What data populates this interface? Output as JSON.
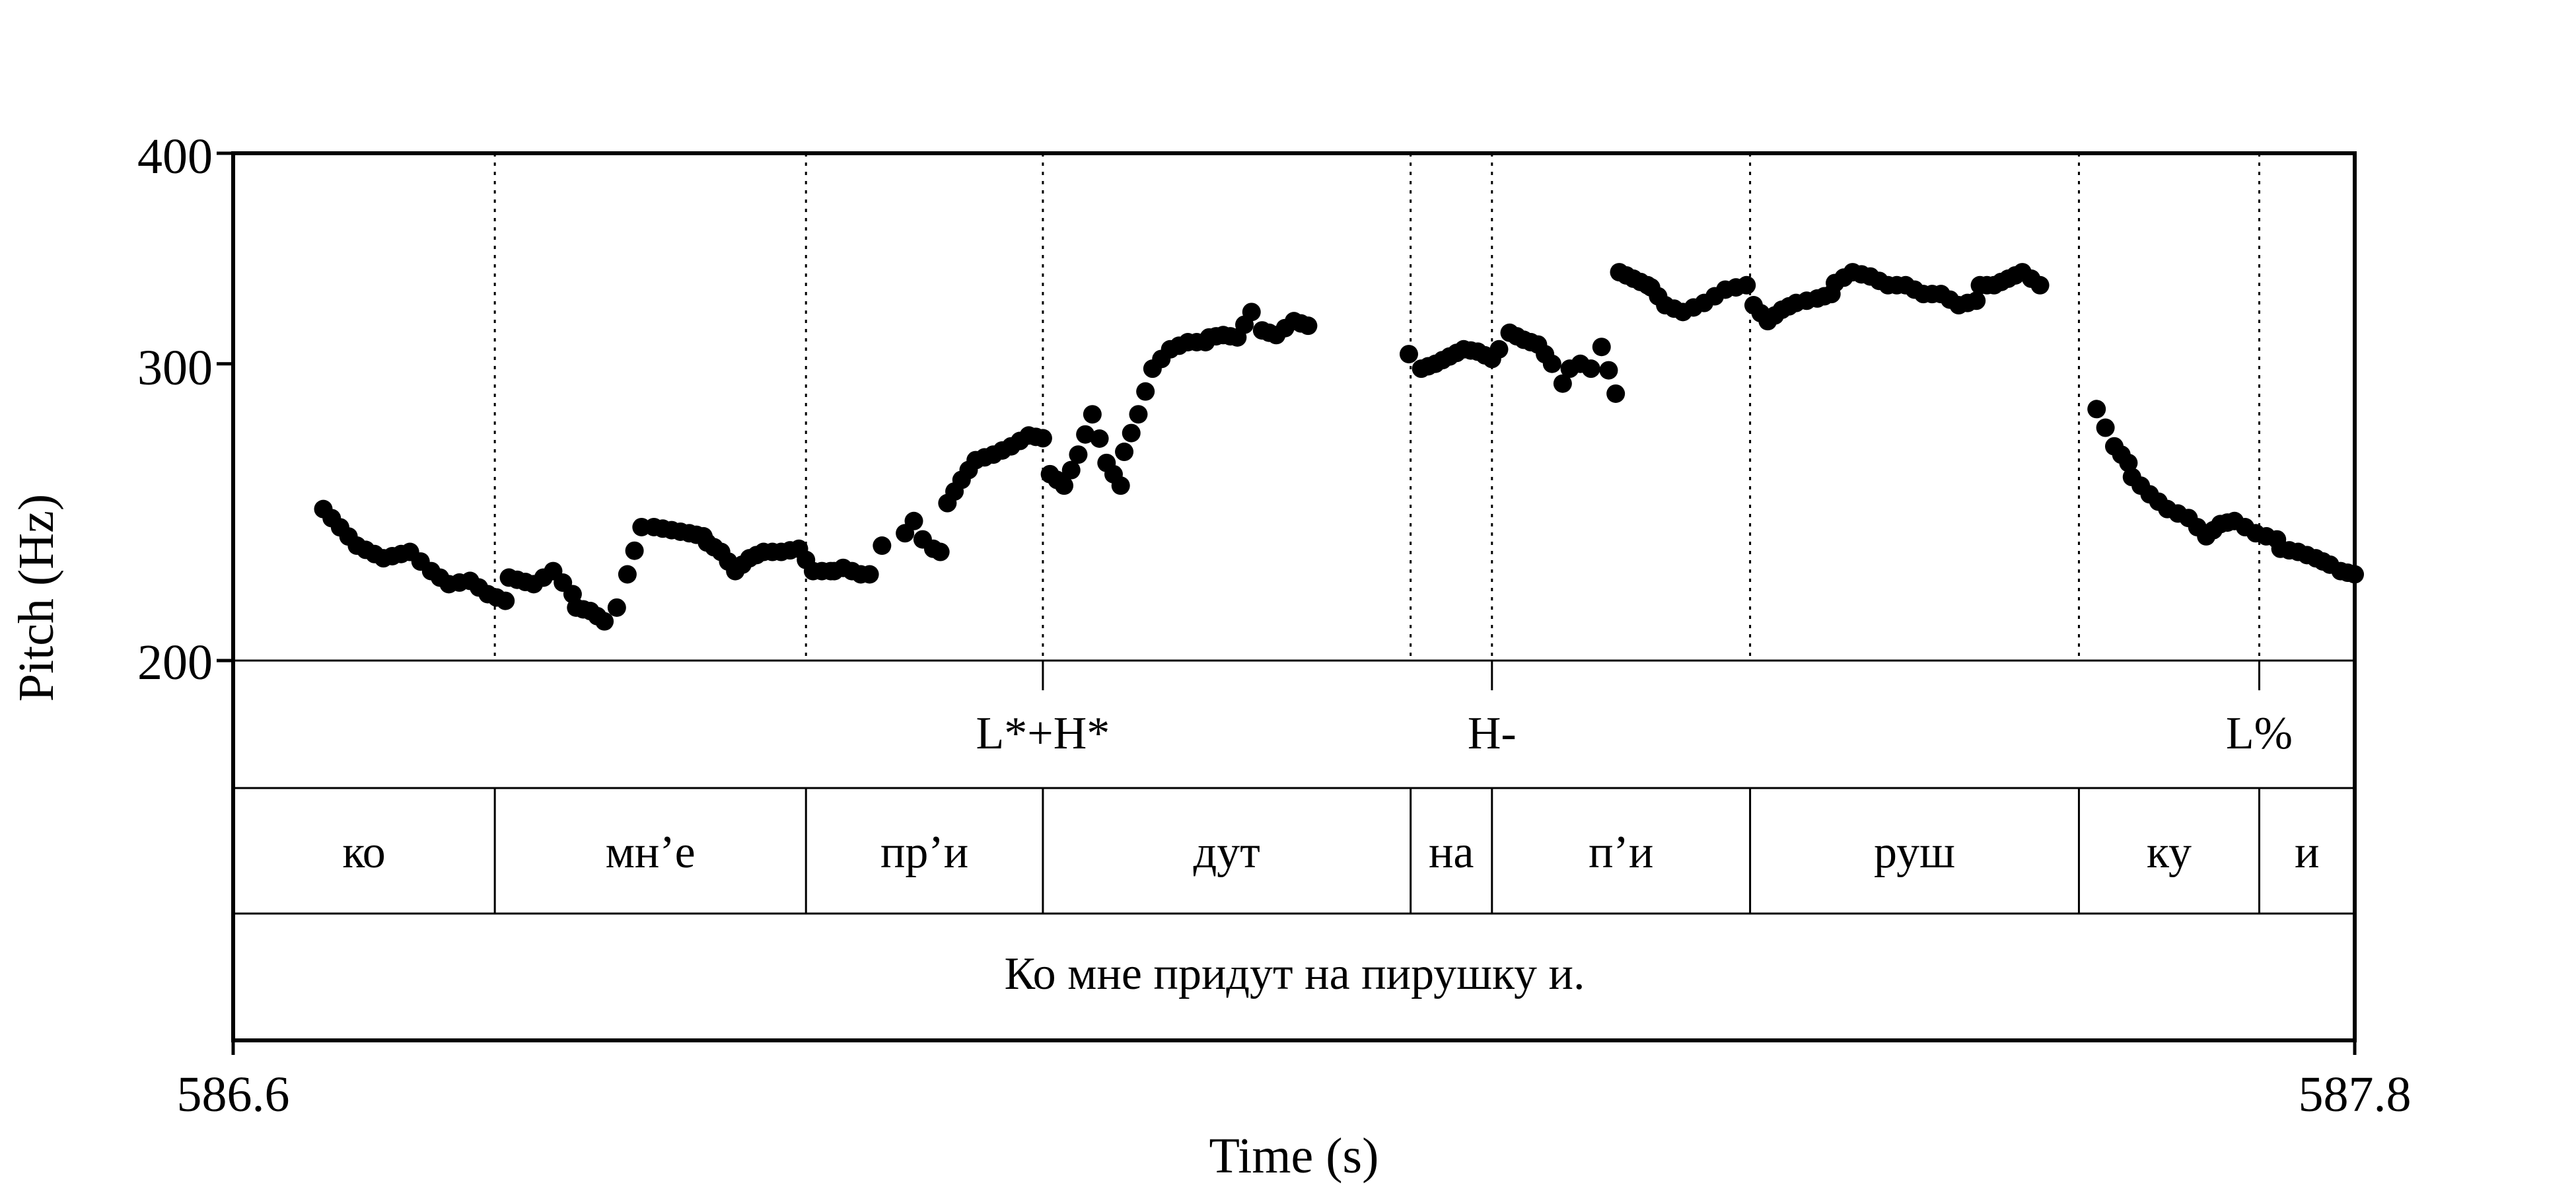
{
  "chart_data": {
    "type": "scatter",
    "xlabel": "Time (s)",
    "ylabel": "Pitch (Hz)",
    "xlim": [
      586.6,
      587.8
    ],
    "ylim": [
      200,
      400
    ],
    "y_scale": "log",
    "x_ticks": [
      "586.6",
      "587.8"
    ],
    "y_ticks": [
      {
        "value": 200,
        "label": "200"
      },
      {
        "value": 300,
        "label": "300"
      },
      {
        "value": 400,
        "label": "400"
      }
    ],
    "grid": false,
    "boundaries": [
      586.748,
      586.924,
      587.058,
      587.266,
      587.312,
      587.458,
      587.644,
      587.746
    ],
    "tones": [
      {
        "label": "L*+H*",
        "time": 587.058
      },
      {
        "label": "H-",
        "time": 587.312
      },
      {
        "label": "L%",
        "time": 587.746
      }
    ],
    "syllables": [
      {
        "label": "ко",
        "start": 586.6,
        "end": 586.748
      },
      {
        "label": "мн’е",
        "start": 586.748,
        "end": 586.924
      },
      {
        "label": "пр’и",
        "start": 586.924,
        "end": 587.058
      },
      {
        "label": "дут",
        "start": 587.058,
        "end": 587.266
      },
      {
        "label": "на",
        "start": 587.266,
        "end": 587.312
      },
      {
        "label": "п’и",
        "start": 587.312,
        "end": 587.458
      },
      {
        "label": "руш",
        "start": 587.458,
        "end": 587.644
      },
      {
        "label": "ку",
        "start": 587.644,
        "end": 587.746
      },
      {
        "label": "и",
        "start": 587.746,
        "end": 587.8
      }
    ],
    "sentence": "Ко мне придут на пирушку и.",
    "segments": [
      {
        "start": 586.651,
        "end": 586.754,
        "points": [
          [
            586.651,
            246
          ],
          [
            586.67,
            234
          ],
          [
            586.685,
            230
          ],
          [
            586.7,
            232
          ],
          [
            586.712,
            226
          ],
          [
            586.722,
            222
          ],
          [
            586.734,
            223
          ],
          [
            586.744,
            219
          ],
          [
            586.754,
            217
          ]
        ]
      },
      {
        "start": 586.756,
        "end": 586.792,
        "points": [
          [
            586.756,
            224
          ],
          [
            586.77,
            222
          ],
          [
            586.781,
            226
          ],
          [
            586.792,
            219
          ]
        ]
      },
      {
        "start": 586.794,
        "end": 586.866,
        "points": [
          [
            586.794,
            215
          ],
          [
            586.802,
            214
          ],
          [
            586.81,
            211
          ],
          [
            586.817,
            215
          ],
          [
            586.823,
            225
          ],
          [
            586.831,
            240
          ],
          [
            586.838,
            240
          ],
          [
            586.848,
            239
          ],
          [
            586.858,
            238
          ],
          [
            586.866,
            237
          ]
        ]
      },
      {
        "start": 586.868,
        "end": 586.938,
        "points": [
          [
            586.868,
            235
          ],
          [
            586.876,
            232
          ],
          [
            586.884,
            226
          ],
          [
            586.892,
            230
          ],
          [
            586.9,
            232
          ],
          [
            586.91,
            232
          ],
          [
            586.92,
            233
          ],
          [
            586.928,
            226
          ],
          [
            586.938,
            226
          ]
        ]
      },
      {
        "start": 586.94,
        "end": 586.967,
        "points": [
          [
            586.94,
            226
          ],
          [
            586.945,
            227
          ],
          [
            586.95,
            226
          ],
          [
            586.955,
            225
          ],
          [
            586.96,
            225
          ],
          [
            586.967,
            234
          ]
        ]
      },
      {
        "start": 586.98,
        "end": 587.0,
        "points": [
          [
            586.98,
            238
          ],
          [
            586.985,
            242
          ],
          [
            586.99,
            236
          ],
          [
            586.996,
            233
          ],
          [
            587.0,
            232
          ]
        ]
      },
      {
        "start": 587.004,
        "end": 587.058,
        "points": [
          [
            587.004,
            248
          ],
          [
            587.012,
            256
          ],
          [
            587.02,
            263
          ],
          [
            587.03,
            265
          ],
          [
            587.04,
            268
          ],
          [
            587.05,
            272
          ],
          [
            587.058,
            271
          ]
        ]
      },
      {
        "start": 587.062,
        "end": 587.102,
        "points": [
          [
            587.062,
            258
          ],
          [
            587.07,
            254
          ],
          [
            587.078,
            265
          ],
          [
            587.086,
            280
          ],
          [
            587.094,
            262
          ],
          [
            587.102,
            254
          ]
        ]
      },
      {
        "start": 587.104,
        "end": 587.15,
        "points": [
          [
            587.104,
            266
          ],
          [
            587.112,
            280
          ],
          [
            587.12,
            298
          ],
          [
            587.13,
            306
          ],
          [
            587.14,
            309
          ],
          [
            587.15,
            309
          ]
        ]
      },
      {
        "start": 587.152,
        "end": 587.195,
        "points": [
          [
            587.152,
            311
          ],
          [
            587.16,
            312
          ],
          [
            587.168,
            311
          ],
          [
            587.176,
            322
          ],
          [
            587.182,
            314
          ],
          [
            587.19,
            312
          ],
          [
            587.195,
            315
          ]
        ]
      },
      {
        "start": 587.2,
        "end": 587.208,
        "points": [
          [
            587.2,
            318
          ],
          [
            587.208,
            316
          ]
        ]
      },
      {
        "start": 587.265,
        "end": 587.312,
        "points": [
          [
            587.265,
            304
          ],
          [
            587.272,
            298
          ],
          [
            587.28,
            300
          ],
          [
            587.288,
            303
          ],
          [
            587.296,
            306
          ],
          [
            587.304,
            305
          ],
          [
            587.312,
            302
          ]
        ]
      },
      {
        "start": 587.316,
        "end": 587.352,
        "points": [
          [
            587.316,
            306
          ],
          [
            587.322,
            313
          ],
          [
            587.33,
            310
          ],
          [
            587.338,
            308
          ],
          [
            587.346,
            300
          ],
          [
            587.352,
            292
          ]
        ]
      },
      {
        "start": 587.356,
        "end": 587.382,
        "points": [
          [
            587.356,
            298
          ],
          [
            587.362,
            300
          ],
          [
            587.368,
            298
          ],
          [
            587.374,
            307
          ],
          [
            587.382,
            288
          ]
        ]
      },
      {
        "start": 587.384,
        "end": 587.4,
        "points": [
          [
            587.384,
            340
          ],
          [
            587.392,
            337
          ],
          [
            587.4,
            334
          ]
        ]
      },
      {
        "start": 587.402,
        "end": 587.456,
        "points": [
          [
            587.402,
            333
          ],
          [
            587.41,
            325
          ],
          [
            587.42,
            322
          ],
          [
            587.432,
            326
          ],
          [
            587.444,
            332
          ],
          [
            587.456,
            334
          ]
        ]
      },
      {
        "start": 587.46,
        "end": 587.504,
        "points": [
          [
            587.46,
            325
          ],
          [
            587.468,
            318
          ],
          [
            587.476,
            323
          ],
          [
            587.484,
            326
          ],
          [
            587.496,
            328
          ],
          [
            587.504,
            330
          ]
        ]
      },
      {
        "start": 587.506,
        "end": 587.586,
        "points": [
          [
            587.506,
            335
          ],
          [
            587.516,
            340
          ],
          [
            587.526,
            338
          ],
          [
            587.536,
            334
          ],
          [
            587.546,
            334
          ],
          [
            587.556,
            330
          ],
          [
            587.566,
            330
          ],
          [
            587.576,
            325
          ],
          [
            587.586,
            327
          ]
        ]
      },
      {
        "start": 587.588,
        "end": 587.622,
        "points": [
          [
            587.588,
            334
          ],
          [
            587.596,
            334
          ],
          [
            587.604,
            337
          ],
          [
            587.612,
            340
          ],
          [
            587.617,
            337
          ],
          [
            587.622,
            334
          ]
        ]
      },
      {
        "start": 587.654,
        "end": 587.672,
        "points": [
          [
            587.654,
            282
          ],
          [
            587.664,
            268
          ],
          [
            587.672,
            262
          ]
        ]
      },
      {
        "start": 587.674,
        "end": 587.756,
        "points": [
          [
            587.674,
            257
          ],
          [
            587.684,
            251
          ],
          [
            587.694,
            246
          ],
          [
            587.706,
            243
          ],
          [
            587.716,
            237
          ],
          [
            587.724,
            241
          ],
          [
            587.732,
            242
          ],
          [
            587.744,
            238
          ],
          [
            587.756,
            236
          ]
        ]
      },
      {
        "start": 587.758,
        "end": 587.8,
        "points": [
          [
            587.758,
            233
          ],
          [
            587.768,
            232
          ],
          [
            587.778,
            230
          ],
          [
            587.786,
            228
          ],
          [
            587.792,
            226
          ],
          [
            587.8,
            225
          ]
        ]
      }
    ]
  }
}
